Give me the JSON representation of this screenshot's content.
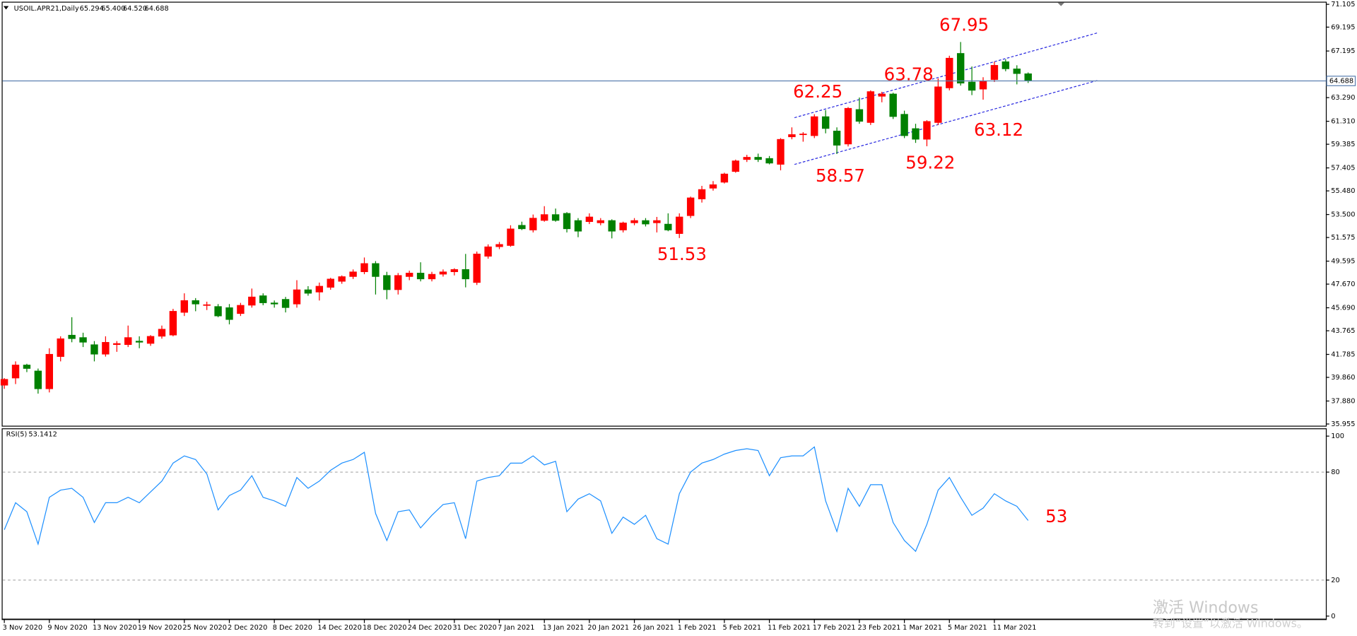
{
  "chart_data": [
    {
      "type": "candlestick",
      "title": "USOIL.APR21,Daily",
      "last_bar_labels": {
        "open": "65.294",
        "high": "65.400",
        "low": "64.520",
        "close": "64.688"
      },
      "categories": [
        "3 Nov 2020",
        null,
        null,
        null,
        "9 Nov 2020",
        null,
        null,
        null,
        "13 Nov 2020",
        null,
        null,
        null,
        "19 Nov 2020",
        null,
        null,
        null,
        "25 Nov 2020",
        null,
        null,
        null,
        "2 Dec 2020",
        null,
        null,
        null,
        "8 Dec 2020",
        null,
        null,
        null,
        "14 Dec 2020",
        null,
        null,
        null,
        "18 Dec 2020",
        null,
        null,
        null,
        "24 Dec 2020",
        null,
        null,
        null,
        "31 Dec 2020",
        null,
        null,
        null,
        "7 Jan 2021",
        null,
        null,
        null,
        "13 Jan 2021",
        null,
        null,
        null,
        "20 Jan 2021",
        null,
        null,
        null,
        "26 Jan 2021",
        null,
        null,
        null,
        "1 Feb 2021",
        null,
        null,
        null,
        "5 Feb 2021",
        null,
        null,
        null,
        "11 Feb 2021",
        null,
        null,
        null,
        "17 Feb 2021",
        null,
        null,
        null,
        "23 Feb 2021",
        null,
        null,
        null,
        "1 Mar 2021",
        null,
        null,
        null,
        "5 Mar 2021",
        null,
        null,
        null,
        "11 Mar 2021",
        null,
        null,
        null
      ],
      "open": [
        39.2,
        39.8,
        40.9,
        40.4,
        38.9,
        41.6,
        43.4,
        43.2,
        42.6,
        41.8,
        42.6,
        42.6,
        42.9,
        42.7,
        43.3,
        43.4,
        45.3,
        46.3,
        45.9,
        45.8,
        45.7,
        45.2,
        45.9,
        46.7,
        46.1,
        46.4,
        46.0,
        47.2,
        47.0,
        47.4,
        47.9,
        48.3,
        48.7,
        49.4,
        48.4,
        47.2,
        48.3,
        48.6,
        48.1,
        48.5,
        48.7,
        48.9,
        47.8,
        50.0,
        50.8,
        50.9,
        52.6,
        52.2,
        53.0,
        53.5,
        53.6,
        53.0,
        52.9,
        52.8,
        53.0,
        52.2,
        52.8,
        53.0,
        52.8,
        52.7,
        51.9,
        53.4,
        54.8,
        55.7,
        56.2,
        57.1,
        58.1,
        58.3,
        58.2,
        57.7,
        60.0,
        60.2,
        60.1,
        61.7,
        60.5,
        59.4,
        62.3,
        61.2,
        63.4,
        63.6,
        61.9,
        60.7,
        59.8,
        61.2,
        64.1,
        67.0,
        64.6,
        64.0,
        64.8,
        66.3,
        65.7,
        65.294
      ],
      "high": [
        39.8,
        41.2,
        41.0,
        40.6,
        42.3,
        43.3,
        44.9,
        43.6,
        42.9,
        43.3,
        42.9,
        44.2,
        43.3,
        43.4,
        44.2,
        45.6,
        46.9,
        46.5,
        46.2,
        46.0,
        46.0,
        46.1,
        47.3,
        46.9,
        46.3,
        46.6,
        48.0,
        47.5,
        47.8,
        48.2,
        48.4,
        48.9,
        49.9,
        49.6,
        48.7,
        48.6,
        48.8,
        49.5,
        48.7,
        48.9,
        49.0,
        50.2,
        50.4,
        51.0,
        51.2,
        52.6,
        52.9,
        53.5,
        54.2,
        54.0,
        53.7,
        53.2,
        53.6,
        53.2,
        53.1,
        52.9,
        53.2,
        53.2,
        53.3,
        53.6,
        53.6,
        55.0,
        55.9,
        56.3,
        57.0,
        58.1,
        58.5,
        58.6,
        58.4,
        59.9,
        60.8,
        60.4,
        61.9,
        62.25,
        60.8,
        62.5,
        63.3,
        63.9,
        63.78,
        63.7,
        62.2,
        61.1,
        61.4,
        64.9,
        66.8,
        67.95,
        65.9,
        65.0,
        66.3,
        66.5,
        66.0,
        65.4
      ],
      "low": [
        38.9,
        39.3,
        40.3,
        38.5,
        38.6,
        41.2,
        42.8,
        42.4,
        41.2,
        41.6,
        42.0,
        42.4,
        42.3,
        42.5,
        43.1,
        43.3,
        45.0,
        45.4,
        45.5,
        44.9,
        44.3,
        45.0,
        45.7,
        45.9,
        45.7,
        45.3,
        45.7,
        46.7,
        46.3,
        47.2,
        47.7,
        48.1,
        48.5,
        46.8,
        46.4,
        46.8,
        48.0,
        47.9,
        47.9,
        48.3,
        48.4,
        47.4,
        47.6,
        49.8,
        50.6,
        50.8,
        52.2,
        52.0,
        52.9,
        52.9,
        52.0,
        51.6,
        52.7,
        52.6,
        51.5,
        52.0,
        52.6,
        52.5,
        52.0,
        52.1,
        51.53,
        53.2,
        54.5,
        55.5,
        56.1,
        57.0,
        57.9,
        57.9,
        57.7,
        57.2,
        59.8,
        59.6,
        59.9,
        60.3,
        58.57,
        59.2,
        61.1,
        61.0,
        62.9,
        61.5,
        59.9,
        59.5,
        59.22,
        61.0,
        63.9,
        64.3,
        63.5,
        63.12,
        64.6,
        65.5,
        64.4,
        64.52
      ],
      "close": [
        39.7,
        40.9,
        40.6,
        38.9,
        41.8,
        43.1,
        43.1,
        42.8,
        41.8,
        42.8,
        42.7,
        43.2,
        42.8,
        43.3,
        43.9,
        45.4,
        46.3,
        46.0,
        45.95,
        45.0,
        44.7,
        45.9,
        46.6,
        46.1,
        46.0,
        45.7,
        47.2,
        46.9,
        47.5,
        48.1,
        48.3,
        48.7,
        49.4,
        48.3,
        47.2,
        48.4,
        48.6,
        48.1,
        48.5,
        48.7,
        48.9,
        48.1,
        50.2,
        50.8,
        51.0,
        52.3,
        52.3,
        53.2,
        53.5,
        53.0,
        52.3,
        52.1,
        53.3,
        53.0,
        52.1,
        52.8,
        53.0,
        52.7,
        53.0,
        52.2,
        53.3,
        54.9,
        55.6,
        56.0,
        56.9,
        58.0,
        58.3,
        58.1,
        57.8,
        59.8,
        60.2,
        60.25,
        61.7,
        60.7,
        59.3,
        62.4,
        61.3,
        63.8,
        63.6,
        61.7,
        60.1,
        59.8,
        61.3,
        64.2,
        66.6,
        64.5,
        63.9,
        64.7,
        66.0,
        65.7,
        65.3,
        64.688
      ],
      "up_color": "#ff0000",
      "down_color": "#008000",
      "price_line_color": "#5b7fb0",
      "ylim": [
        35.955,
        71.105
      ],
      "yticks": [
        {
          "value": 71.105,
          "label": "71.105"
        },
        {
          "value": 69.195,
          "label": "69.195"
        },
        {
          "value": 67.195,
          "label": "67.195"
        },
        {
          "value": 63.29,
          "label": "63.290"
        },
        {
          "value": 61.31,
          "label": "61.310"
        },
        {
          "value": 59.385,
          "label": "59.385"
        },
        {
          "value": 57.405,
          "label": "57.405"
        },
        {
          "value": 55.48,
          "label": "55.480"
        },
        {
          "value": 53.5,
          "label": "53.500"
        },
        {
          "value": 51.575,
          "label": "51.575"
        },
        {
          "value": 49.595,
          "label": "49.595"
        },
        {
          "value": 47.67,
          "label": "47.670"
        },
        {
          "value": 45.69,
          "label": "45.690"
        },
        {
          "value": 43.765,
          "label": "43.765"
        },
        {
          "value": 41.785,
          "label": "41.785"
        },
        {
          "value": 39.86,
          "label": "39.860"
        },
        {
          "value": 37.88,
          "label": "37.880"
        },
        {
          "value": 35.955,
          "label": "35.955"
        }
      ],
      "annotations": [
        "67.95",
        "63.78",
        "62.25",
        "63.12",
        "58.57",
        "59.22",
        "51.53"
      ],
      "annotation_color": "#ff0000"
    },
    {
      "type": "line",
      "title": "RSI(5)",
      "color": "#1e90ff",
      "values": [
        48,
        63,
        58,
        40,
        66,
        70,
        71,
        66,
        52,
        63,
        63,
        66,
        63,
        69,
        75,
        85,
        89,
        87,
        79,
        59,
        67,
        70,
        78,
        66,
        64,
        61,
        77,
        71,
        75,
        81,
        85,
        87,
        91,
        57,
        42,
        58,
        59,
        49,
        56,
        62,
        63,
        43,
        75,
        77,
        78,
        85,
        85,
        89,
        84,
        86,
        58,
        65,
        68,
        64,
        46,
        55,
        51,
        56,
        43,
        40,
        68,
        80,
        85,
        87,
        90,
        92,
        93,
        92,
        78,
        88,
        89,
        89,
        94,
        64,
        47,
        71,
        61,
        73,
        73,
        52,
        42,
        36,
        51,
        70,
        77,
        66,
        56,
        60,
        68,
        64,
        61,
        53.1412
      ],
      "ylim": [
        0,
        100
      ],
      "yticks": [
        0,
        20,
        80,
        100
      ],
      "levels": [
        80,
        20
      ],
      "annotation": "53",
      "annotation_color": "#ff0000"
    }
  ],
  "watermark": [
    "激活 Windows",
    "转到“设置”以激活 Windows。"
  ]
}
